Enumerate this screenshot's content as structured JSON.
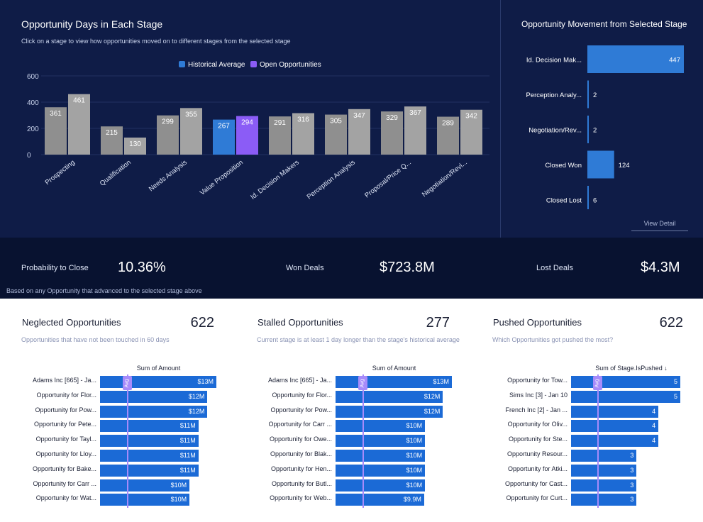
{
  "main": {
    "title": "Opportunity Days in Each Stage",
    "subtitle": "Click on a stage to view how opportunities moved on to different stages from the selected stage"
  },
  "chart_data": [
    {
      "type": "bar",
      "title": "Opportunity Days in Each Stage",
      "categories": [
        "Prospecting",
        "Qualification",
        "Needs Analysis",
        "Value Proposition",
        "Id. Decision Makers",
        "Perception Analysis",
        "Proposal/Price Q...",
        "Negotiation/Revi..."
      ],
      "series": [
        {
          "name": "Historical Average",
          "values": [
            361,
            215,
            299,
            267,
            291,
            305,
            329,
            289
          ]
        },
        {
          "name": "Open Opportunities",
          "values": [
            461,
            130,
            355,
            294,
            316,
            347,
            367,
            342
          ]
        }
      ],
      "selected_index": 3,
      "ylim": [
        0,
        600
      ],
      "yticks": [
        0,
        200,
        400,
        600
      ],
      "legend": "top-center",
      "colors": {
        "selected_hist": "#2f7bd6",
        "selected_open": "#8b5cf6",
        "hist": "#8f8f8f",
        "open": "#a3a3a3",
        "legend_hist": "#2f7bd6",
        "legend_open": "#8b5cf6"
      }
    },
    {
      "type": "bar",
      "title": "Opportunity Movement from Selected Stage",
      "orientation": "horizontal",
      "categories": [
        "Id. Decision Mak...",
        "Perception Analy...",
        "Negotiation/Rev...",
        "Closed Won",
        "Closed Lost"
      ],
      "values": [
        447,
        2,
        2,
        124,
        6
      ],
      "xlim": [
        0,
        447
      ],
      "color": "#2f7bd6"
    }
  ],
  "movement": {
    "title": "Opportunity Movement from Selected Stage",
    "view_detail": "View Detail"
  },
  "kpi": {
    "prob_label": "Probability to Close",
    "prob_value": "10.36%",
    "won_label": "Won Deals",
    "won_value": "$723.8M",
    "lost_label": "Lost Deals",
    "lost_value": "$4.3M",
    "footnote": "Based on any Opportunity that advanced to the selected stage above"
  },
  "neglected": {
    "title": "Neglected Opportunities",
    "count": "622",
    "subtitle": "Opportunities that have not been touched in 60 days",
    "col_header": "Sum of Amount",
    "avg": "Avg",
    "max": 13,
    "avg_value": 3,
    "rows": [
      {
        "label": "Adams Inc [665] - Ja...",
        "value": 13,
        "display": "$13M"
      },
      {
        "label": "Opportunity for Flor...",
        "value": 12,
        "display": "$12M"
      },
      {
        "label": "Opportunity for Pow...",
        "value": 12,
        "display": "$12M"
      },
      {
        "label": "Opportunity for Pete...",
        "value": 11,
        "display": "$11M"
      },
      {
        "label": "Opportunity for Tayl...",
        "value": 11,
        "display": "$11M"
      },
      {
        "label": "Opportunity for Lloy...",
        "value": 11,
        "display": "$11M"
      },
      {
        "label": "Opportunity for Bake...",
        "value": 11,
        "display": "$11M"
      },
      {
        "label": "Opportunity for Carr ...",
        "value": 10,
        "display": "$10M"
      },
      {
        "label": "Opportunity for Wat...",
        "value": 10,
        "display": "$10M"
      }
    ]
  },
  "stalled": {
    "title": "Stalled Opportunities",
    "count": "277",
    "subtitle": "Current stage is at least 1 day longer than the stage's historical average",
    "col_header": "Sum of Amount",
    "avg": "Avg",
    "max": 13,
    "avg_value": 3,
    "rows": [
      {
        "label": "Adams Inc [665] - Ja...",
        "value": 13,
        "display": "$13M"
      },
      {
        "label": "Opportunity for Flor...",
        "value": 12,
        "display": "$12M"
      },
      {
        "label": "Opportunity for Pow...",
        "value": 12,
        "display": "$12M"
      },
      {
        "label": "Opportunity for Carr ...",
        "value": 10,
        "display": "$10M"
      },
      {
        "label": "Opportunity for Owe...",
        "value": 10,
        "display": "$10M"
      },
      {
        "label": "Opportunity for Blak...",
        "value": 10,
        "display": "$10M"
      },
      {
        "label": "Opportunity for Hen...",
        "value": 10,
        "display": "$10M"
      },
      {
        "label": "Opportunity for Butl...",
        "value": 10,
        "display": "$10M"
      },
      {
        "label": "Opportunity for Web...",
        "value": 9.9,
        "display": "$9.9M"
      }
    ]
  },
  "pushed": {
    "title": "Pushed Opportunities",
    "count": "622",
    "subtitle": "Which Opportunities got pushed the most?",
    "col_header": "Sum of Stage.IsPushed ↓",
    "avg": "Avg",
    "max": 5,
    "avg_value": 1.2,
    "rows": [
      {
        "label": "Opportunity for Tow...",
        "value": 5,
        "display": "5"
      },
      {
        "label": "Sims Inc [3] - Jan 10",
        "value": 5,
        "display": "5"
      },
      {
        "label": "French Inc [2] - Jan ...",
        "value": 4,
        "display": "4"
      },
      {
        "label": "Opportunity for Oliv...",
        "value": 4,
        "display": "4"
      },
      {
        "label": "Opportunity for Ste...",
        "value": 4,
        "display": "4"
      },
      {
        "label": "Opportunity Resour...",
        "value": 3,
        "display": "3"
      },
      {
        "label": "Opportunity for Atki...",
        "value": 3,
        "display": "3"
      },
      {
        "label": "Opportunity for Cast...",
        "value": 3,
        "display": "3"
      },
      {
        "label": "Opportunity for Curt...",
        "value": 3,
        "display": "3"
      }
    ]
  }
}
